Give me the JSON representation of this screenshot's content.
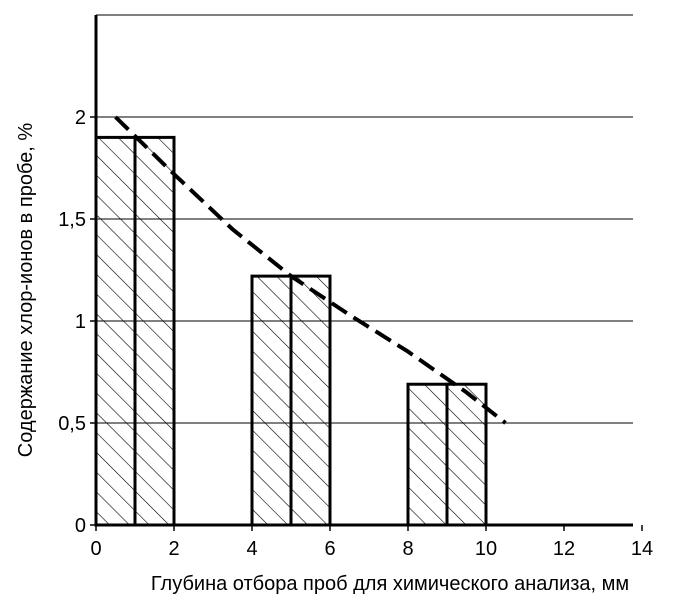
{
  "chart_data": {
    "type": "bar",
    "title": "",
    "xlabel": "Глубина отбора проб для химического анализа, мм",
    "ylabel": "Содержание хлор-ионов в пробе, %",
    "xlim": [
      0,
      14.5
    ],
    "ylim": [
      0,
      2.5
    ],
    "x_ticks": [
      {
        "value": 0,
        "label": "0"
      },
      {
        "value": 2,
        "label": "2"
      },
      {
        "value": 4,
        "label": "4"
      },
      {
        "value": 6,
        "label": "6"
      },
      {
        "value": 8,
        "label": "8"
      },
      {
        "value": 10,
        "label": "10"
      },
      {
        "value": 12,
        "label": "12"
      },
      {
        "value": 14,
        "label": "14"
      }
    ],
    "y_ticks": [
      {
        "value": 0,
        "label": "0"
      },
      {
        "value": 0.5,
        "label": "0,5"
      },
      {
        "value": 1,
        "label": "1"
      },
      {
        "value": 1.5,
        "label": "1,5"
      },
      {
        "value": 2,
        "label": "2"
      }
    ],
    "grid": "horizontal",
    "bar_pattern": "diagonal-hatch",
    "bars": [
      {
        "x_start": 0,
        "x_end": 1,
        "value": 1.9
      },
      {
        "x_start": 1,
        "x_end": 2,
        "value": 1.9
      },
      {
        "x_start": 4,
        "x_end": 5,
        "value": 1.22
      },
      {
        "x_start": 5,
        "x_end": 6,
        "value": 1.22
      },
      {
        "x_start": 8,
        "x_end": 9,
        "value": 0.69
      },
      {
        "x_start": 9,
        "x_end": 10,
        "value": 0.69
      }
    ],
    "trend_line": {
      "style": "dashed",
      "points": [
        {
          "x": 0.5,
          "y": 2.0
        },
        {
          "x": 2.0,
          "y": 1.72
        },
        {
          "x": 3.5,
          "y": 1.45
        },
        {
          "x": 5.0,
          "y": 1.22
        },
        {
          "x": 6.5,
          "y": 1.03
        },
        {
          "x": 8.0,
          "y": 0.85
        },
        {
          "x": 9.5,
          "y": 0.65
        },
        {
          "x": 10.5,
          "y": 0.5
        }
      ]
    }
  }
}
